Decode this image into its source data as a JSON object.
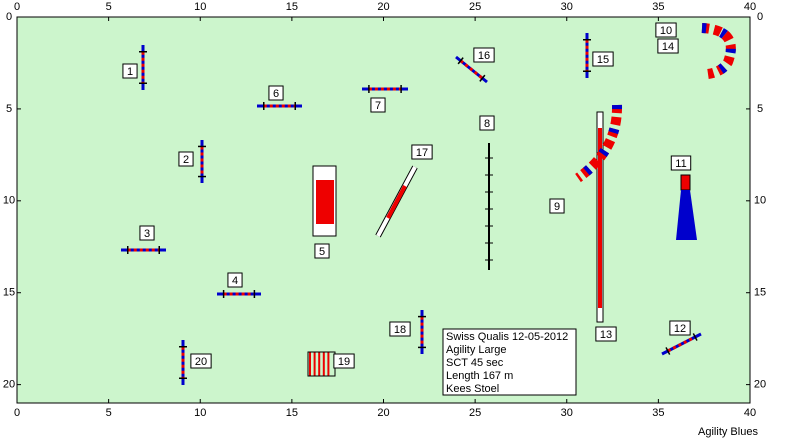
{
  "axes": {
    "xlim": [
      0,
      40
    ],
    "ylim": [
      0,
      21
    ],
    "xticks": [
      0,
      5,
      10,
      15,
      20,
      25,
      30,
      35,
      40
    ],
    "yticks": [
      0,
      5,
      10,
      15,
      20
    ]
  },
  "obstacles": [
    {
      "label": "1"
    },
    {
      "label": "2"
    },
    {
      "label": "3"
    },
    {
      "label": "4"
    },
    {
      "label": "5"
    },
    {
      "label": "6"
    },
    {
      "label": "7"
    },
    {
      "label": "8"
    },
    {
      "label": "9"
    },
    {
      "label": "10"
    },
    {
      "label": "11"
    },
    {
      "label": "12"
    },
    {
      "label": "13"
    },
    {
      "label": "14"
    },
    {
      "label": "15"
    },
    {
      "label": "16"
    },
    {
      "label": "17"
    },
    {
      "label": "18"
    },
    {
      "label": "19"
    },
    {
      "label": "20"
    }
  ],
  "info": {
    "lines": [
      "Swiss Qualis 12-05-2012",
      "Agility Large",
      "SCT 45 sec",
      "Length 167 m",
      "Kees Stoel"
    ]
  },
  "footer": "Agility Blues"
}
